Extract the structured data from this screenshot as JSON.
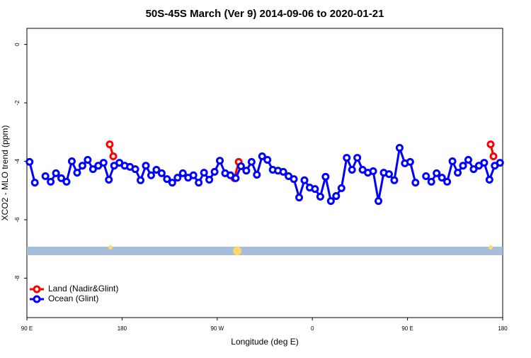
{
  "chart_data": {
    "type": "line",
    "title": "50S-45S March (Ver 9)   2014-09-06 to 2020-01-21",
    "x_label": "Longitude (deg E)",
    "y_label": "XCO2 - MLO trend (ppm)",
    "xlim": [
      90,
      540
    ],
    "ylim": [
      -9.35,
      0.55
    ],
    "xticks": [
      {
        "value": 90,
        "label": "90 E"
      },
      180,
      {
        "value": 270,
        "label": "90 W"
      },
      {
        "value": 360,
        "label": "0"
      },
      {
        "value": 450,
        "label": "90 E"
      },
      {
        "value": 540,
        "label": "180"
      }
    ],
    "yticks": [
      0,
      -2,
      -4,
      -6,
      -8
    ],
    "legend": "bottom-left",
    "series": [
      {
        "name": "Land (Nadir&Glint)",
        "color": "#ff0000",
        "x": [
          168.3,
          171.7,
          230,
          286.3,
          290.3,
          410,
          528.6,
          531.3
        ],
        "values": [
          -3.42,
          -3.83,
          null,
          -4.58,
          -4.02,
          null,
          -3.42,
          -3.83
        ]
      },
      {
        "name": "Ocean (Glint)",
        "color": "#0000ff",
        "x": [
          92.5,
          97.5,
          102.5,
          107.5,
          112.5,
          117.5,
          122.5,
          127.5,
          132.5,
          137.5,
          142.5,
          147.5,
          152.5,
          157.5,
          162.5,
          167.5,
          172.5,
          177.5,
          182.5,
          187.5,
          192.5,
          197.5,
          202.5,
          207.5,
          212.5,
          217.5,
          222.5,
          227.5,
          232.5,
          237.5,
          242.5,
          247.5,
          252.5,
          257.5,
          262.5,
          267.5,
          272.5,
          277.5,
          282.5,
          287.5,
          292.5,
          297.5,
          302.5,
          307.5,
          312.5,
          317.5,
          322.5,
          327.5,
          332.5,
          337.5,
          342.5,
          347.5,
          352.5,
          357.5,
          362.5,
          367.5,
          372.5,
          377.5,
          382.5,
          387.5,
          392.5,
          397.5,
          402.5,
          407.5,
          412.5,
          417.5,
          422.5,
          427.5,
          432.5,
          437.5,
          442.5,
          447.5,
          452.5,
          457.5,
          462.5,
          467.5,
          472.5,
          477.5,
          482.5,
          487.5,
          492.5,
          497.5,
          502.5,
          507.5,
          512.5,
          517.5,
          522.5,
          527.5,
          532.5,
          537.5
        ],
        "values": [
          -4.02,
          -4.73,
          null,
          -4.51,
          -4.7,
          -4.41,
          -4.58,
          -4.7,
          -4.0,
          -4.39,
          -4.15,
          -3.95,
          -4.27,
          -4.15,
          -4.05,
          -4.63,
          -4.15,
          -4.05,
          -4.15,
          -4.19,
          -4.27,
          -4.65,
          -4.15,
          -4.48,
          -4.29,
          -4.41,
          -4.61,
          -4.73,
          -4.56,
          -4.41,
          -4.56,
          -4.48,
          -4.73,
          -4.39,
          -4.63,
          -4.36,
          -3.98,
          -4.41,
          -4.48,
          -4.58,
          -4.17,
          -4.32,
          -4.02,
          -4.46,
          -3.83,
          -3.95,
          -4.29,
          -4.32,
          -4.36,
          -4.51,
          -4.61,
          -5.24,
          -4.65,
          -4.9,
          -4.95,
          -5.21,
          -4.53,
          -5.36,
          -5.19,
          -4.92,
          -3.88,
          -4.29,
          -3.88,
          -4.29,
          -4.39,
          -4.34,
          -5.36,
          -4.39,
          -4.44,
          -4.65,
          -3.54,
          -4.07,
          -4.02,
          -4.73,
          null,
          -4.51,
          -4.7,
          -4.41,
          -4.56,
          -4.7,
          -4.0,
          -4.39,
          -4.15,
          -3.95,
          -4.27,
          -4.15,
          -4.05,
          -4.63,
          -4.15,
          -4.05
        ]
      }
    ]
  }
}
